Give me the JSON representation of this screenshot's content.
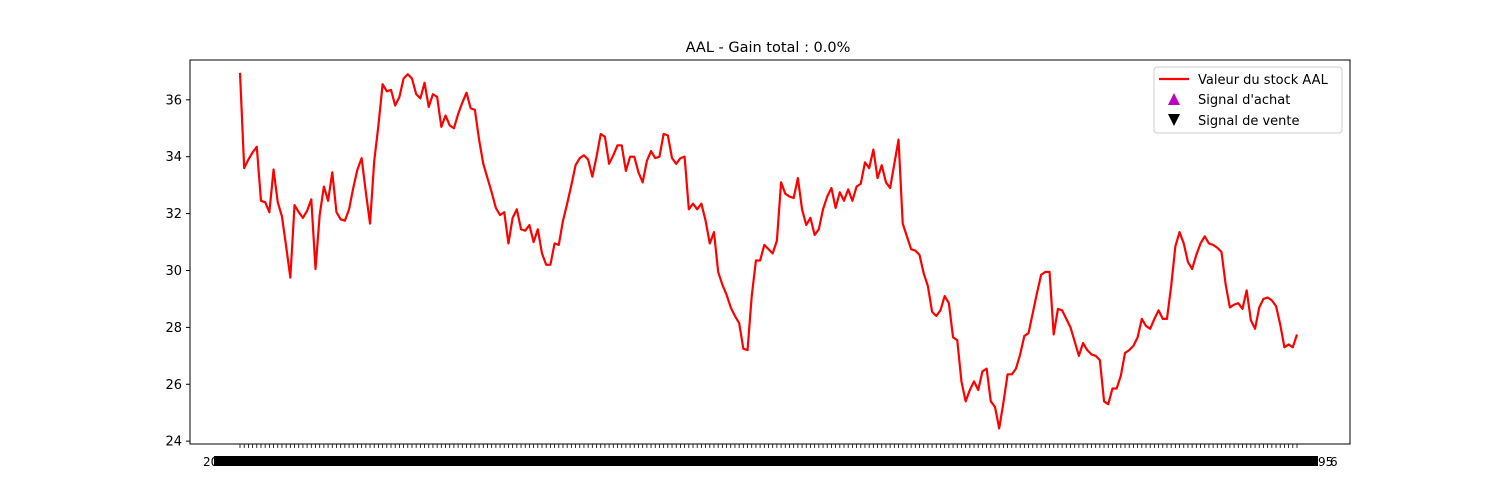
{
  "chart_data": {
    "type": "line",
    "title": "AAL - Gain total : 0.0%",
    "xlabel": "",
    "ylabel": "",
    "ylim": [
      23.9,
      37.4
    ],
    "yticks": [
      24,
      26,
      28,
      30,
      32,
      34,
      36
    ],
    "grid": false,
    "legend_position": "top-right",
    "series": [
      {
        "name": "Valeur du stock AAL",
        "color": "#ff0000",
        "values": [
          36.95,
          33.6,
          33.9,
          34.15,
          34.35,
          32.45,
          32.4,
          32.05,
          33.55,
          32.4,
          31.9,
          30.85,
          29.75,
          32.3,
          32.05,
          31.85,
          32.1,
          32.5,
          30.05,
          31.95,
          32.95,
          32.45,
          33.45,
          32.05,
          31.8,
          31.75,
          32.15,
          32.9,
          33.55,
          33.95,
          32.75,
          31.65,
          33.85,
          35.1,
          36.55,
          36.3,
          36.35,
          35.8,
          36.1,
          36.75,
          36.9,
          36.75,
          36.2,
          36.05,
          36.6,
          35.75,
          36.2,
          36.1,
          35.05,
          35.45,
          35.1,
          35.0,
          35.5,
          35.9,
          36.25,
          35.7,
          35.65,
          34.6,
          33.75,
          33.25,
          32.75,
          32.2,
          31.95,
          32.05,
          30.95,
          31.85,
          32.15,
          31.45,
          31.4,
          31.6,
          31.0,
          31.45,
          30.6,
          30.2,
          30.2,
          30.95,
          30.9,
          31.75,
          32.35,
          33.0,
          33.7,
          33.95,
          34.05,
          33.9,
          33.3,
          34.0,
          34.8,
          34.7,
          33.75,
          34.05,
          34.4,
          34.4,
          33.5,
          34.0,
          34.0,
          33.45,
          33.1,
          33.85,
          34.2,
          33.95,
          34.0,
          34.8,
          34.75,
          33.95,
          33.75,
          33.95,
          34.0,
          32.15,
          32.35,
          32.15,
          32.35,
          31.75,
          30.95,
          31.35,
          29.95,
          29.5,
          29.15,
          28.7,
          28.4,
          28.15,
          27.25,
          27.2,
          29.1,
          30.35,
          30.35,
          30.9,
          30.75,
          30.6,
          31.05,
          33.1,
          32.7,
          32.6,
          32.55,
          33.25,
          32.15,
          31.6,
          31.85,
          31.25,
          31.45,
          32.15,
          32.6,
          32.9,
          32.2,
          32.75,
          32.45,
          32.85,
          32.45,
          32.95,
          33.05,
          33.8,
          33.6,
          34.25,
          33.25,
          33.7,
          33.1,
          32.9,
          33.75,
          34.6,
          31.65,
          31.2,
          30.75,
          30.7,
          30.55,
          29.9,
          29.45,
          28.55,
          28.4,
          28.6,
          29.1,
          28.85,
          27.65,
          27.55,
          26.1,
          25.4,
          25.8,
          26.1,
          25.8,
          26.45,
          26.55,
          25.4,
          25.2,
          24.45,
          25.35,
          26.35,
          26.35,
          26.55,
          27.05,
          27.7,
          27.8,
          28.5,
          29.2,
          29.85,
          29.95,
          29.95,
          27.75,
          28.65,
          28.6,
          28.3,
          28.0,
          27.5,
          27.0,
          27.45,
          27.2,
          27.05,
          27.0,
          26.85,
          25.4,
          25.3,
          25.85,
          25.85,
          26.3,
          27.1,
          27.2,
          27.35,
          27.65,
          28.3,
          28.05,
          27.95,
          28.3,
          28.6,
          28.3,
          28.3,
          29.45,
          30.85,
          31.35,
          30.95,
          30.3,
          30.05,
          30.55,
          30.95,
          31.2,
          30.95,
          30.9,
          30.8,
          30.65,
          29.5,
          28.7,
          28.8,
          28.85,
          28.65,
          29.3,
          28.25,
          27.95,
          28.7,
          29.0,
          29.05,
          28.95,
          28.75,
          28.1,
          27.3,
          27.4,
          27.3,
          27.75
        ]
      }
    ],
    "legend": [
      {
        "label": "Valeur du stock AAL",
        "marker": "line",
        "color": "#ff0000"
      },
      {
        "label": "Signal d'achat",
        "marker": "triangle-up",
        "color": "#bf00bf"
      },
      {
        "label": "Signal de vente",
        "marker": "triangle-down",
        "color": "#000000"
      }
    ],
    "buy_signals": [],
    "sell_signals": [],
    "x_tick_labels_visible": [
      "20",
      "95",
      "6"
    ]
  }
}
